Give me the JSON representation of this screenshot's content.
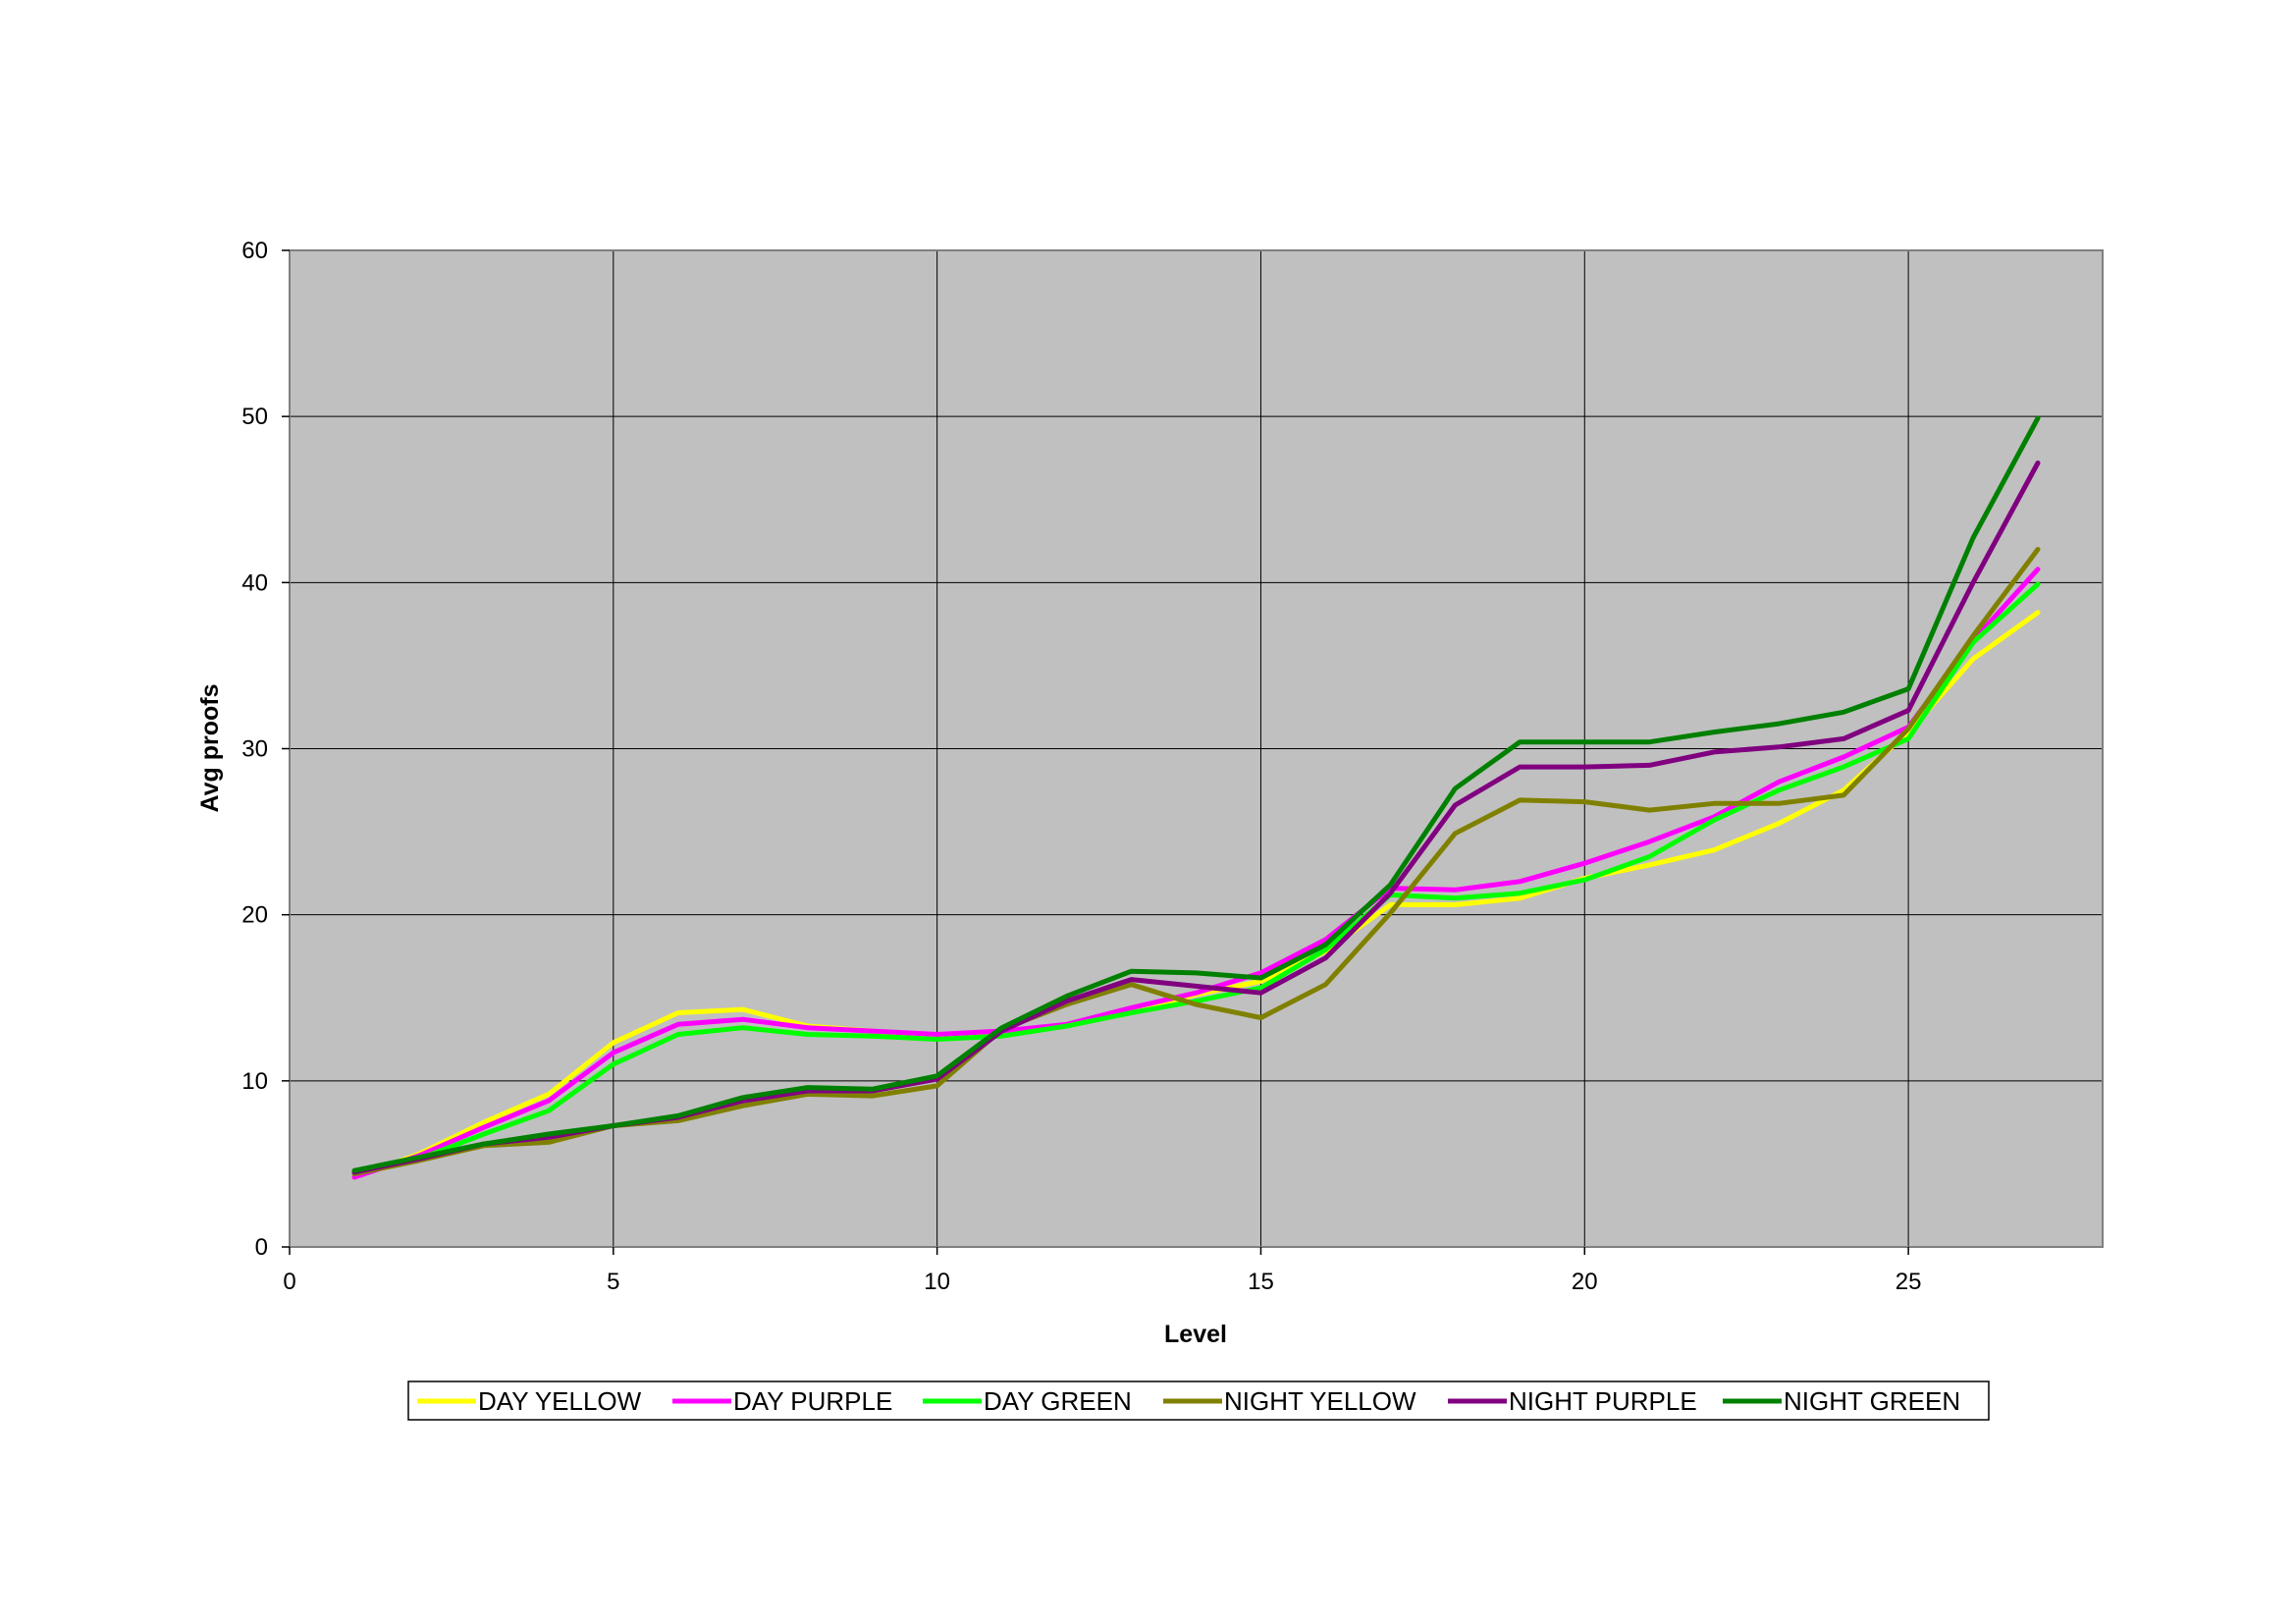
{
  "chart_data": {
    "type": "line",
    "title": "",
    "xlabel": "Level",
    "ylabel": "Avg proofs",
    "xlim": [
      0,
      28
    ],
    "ylim": [
      0,
      60
    ],
    "x_ticks": [
      0,
      5,
      10,
      15,
      20,
      25
    ],
    "y_ticks": [
      0,
      10,
      20,
      30,
      40,
      50,
      60
    ],
    "grid": true,
    "plot_background": "#c0c0c0",
    "legend_position": "bottom",
    "x": [
      1,
      2,
      3,
      4,
      5,
      6,
      7,
      8,
      9,
      10,
      11,
      12,
      13,
      14,
      15,
      16,
      17,
      18,
      19,
      20,
      21,
      22,
      23,
      24,
      25,
      26,
      27
    ],
    "series": [
      {
        "name": "DAY YELLOW",
        "color": "#ffff00",
        "values": [
          4.2,
          5.6,
          7.5,
          9.2,
          12.3,
          14.1,
          14.3,
          13.3,
          13.0,
          12.7,
          12.8,
          13.4,
          14.2,
          15.2,
          16.0,
          17.8,
          20.6,
          20.6,
          21.0,
          22.2,
          23.0,
          23.9,
          25.5,
          27.5,
          31.0,
          35.4,
          38.2
        ]
      },
      {
        "name": "DAY PURPLE",
        "color": "#ff00ff",
        "values": [
          4.2,
          5.5,
          7.2,
          8.8,
          11.7,
          13.4,
          13.7,
          13.2,
          13.0,
          12.8,
          13.0,
          13.4,
          14.4,
          15.3,
          16.5,
          18.5,
          21.6,
          21.5,
          22.0,
          23.1,
          24.4,
          25.9,
          28.0,
          29.5,
          31.3,
          36.5,
          40.8
        ]
      },
      {
        "name": "DAY GREEN",
        "color": "#00ff00",
        "values": [
          4.5,
          5.3,
          6.8,
          8.2,
          11.0,
          12.8,
          13.2,
          12.8,
          12.7,
          12.5,
          12.7,
          13.3,
          14.1,
          14.8,
          15.6,
          17.9,
          21.2,
          21.0,
          21.3,
          22.1,
          23.5,
          25.7,
          27.5,
          28.9,
          30.6,
          36.4,
          39.9
        ]
      },
      {
        "name": "NIGHT YELLOW",
        "color": "#808000",
        "values": [
          4.4,
          5.2,
          6.1,
          6.3,
          7.3,
          7.6,
          8.5,
          9.2,
          9.1,
          9.7,
          13.1,
          14.6,
          15.8,
          14.6,
          13.8,
          15.8,
          20.1,
          24.9,
          26.9,
          26.8,
          26.3,
          26.7,
          26.7,
          27.2,
          31.2,
          36.8,
          42.0
        ]
      },
      {
        "name": "NIGHT PURPLE",
        "color": "#800080",
        "values": [
          4.5,
          5.3,
          6.2,
          6.6,
          7.3,
          7.8,
          8.8,
          9.4,
          9.4,
          10.1,
          13.0,
          14.8,
          16.1,
          15.7,
          15.3,
          17.4,
          21.3,
          26.6,
          28.9,
          28.9,
          29.0,
          29.8,
          30.1,
          30.6,
          32.3,
          40.0,
          47.2
        ]
      },
      {
        "name": "NIGHT GREEN",
        "color": "#008000",
        "values": [
          4.6,
          5.4,
          6.2,
          6.8,
          7.3,
          7.9,
          9.0,
          9.6,
          9.5,
          10.3,
          13.2,
          15.1,
          16.6,
          16.5,
          16.2,
          18.2,
          21.8,
          27.6,
          30.4,
          30.4,
          30.4,
          31.0,
          31.5,
          32.2,
          33.6,
          42.7,
          49.9
        ]
      }
    ]
  }
}
